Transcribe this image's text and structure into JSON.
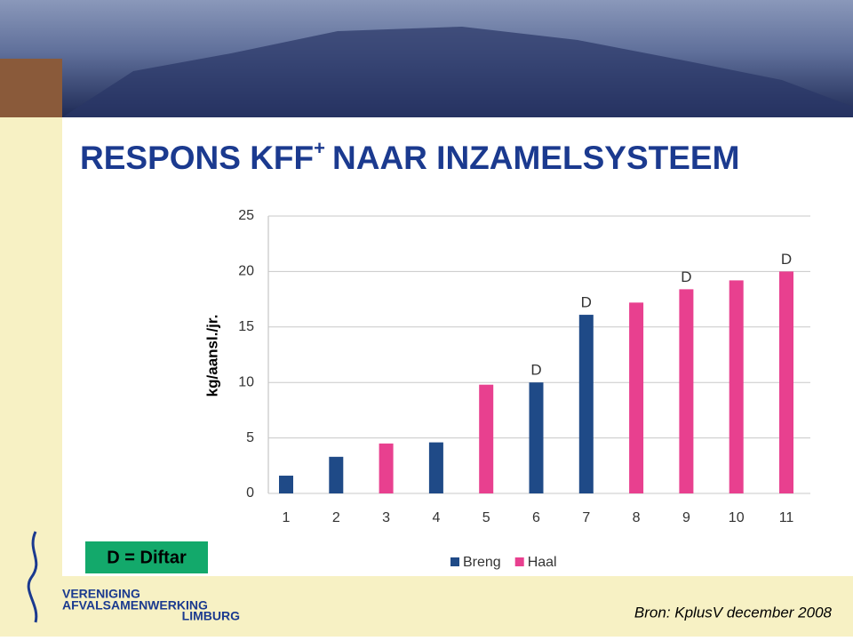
{
  "chart_data": {
    "type": "bar",
    "title": [
      "RESPONS KFF",
      "+",
      "NAAR INZAMELSYSTEEM"
    ],
    "y_label": "kg/aansl./jr.",
    "categories": [
      "1",
      "2",
      "3",
      "4",
      "5",
      "6",
      "7",
      "8",
      "9",
      "10",
      "11"
    ],
    "series": [
      {
        "name": "Breng",
        "color": "#1f4a87",
        "values": [
          1.6,
          3.3,
          null,
          4.6,
          null,
          10.0,
          16.1,
          null,
          null,
          null,
          null
        ]
      },
      {
        "name": "Haal",
        "color": "#e8408f",
        "values": [
          null,
          null,
          4.5,
          null,
          9.8,
          null,
          null,
          17.2,
          18.4,
          19.2,
          20.0
        ]
      }
    ],
    "annotations": [
      {
        "label": "D",
        "x": "6"
      },
      {
        "label": "D",
        "x": "7"
      },
      {
        "label": "D",
        "x": "9"
      },
      {
        "label": "D",
        "x": "11"
      }
    ],
    "ylim": [
      0,
      25
    ],
    "yticks": [
      0,
      5,
      10,
      15,
      20,
      25
    ],
    "grid": true,
    "note": "D = Diftar",
    "source": "Bron: KplusV december 2008",
    "logo": [
      "VERENIGING",
      "AFVALSAMENWERKING",
      "LIMBURG"
    ]
  }
}
